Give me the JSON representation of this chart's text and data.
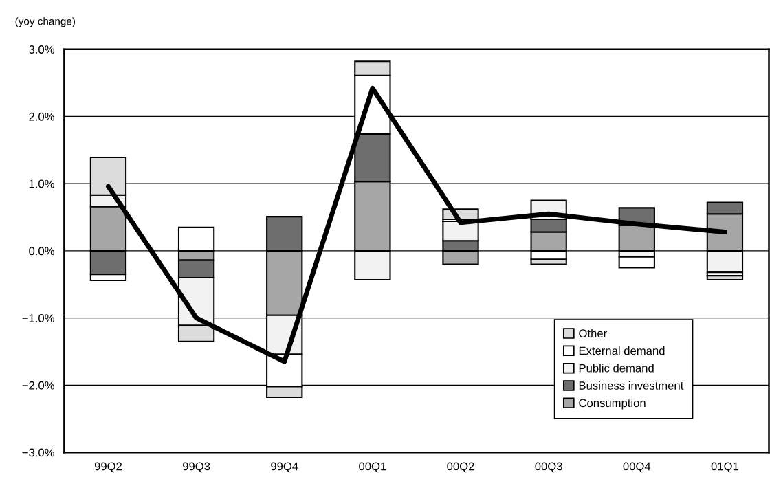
{
  "chart_data": {
    "type": "bar",
    "stacked": true,
    "ylabel": "(yoy change)",
    "categories": [
      "99Q2",
      "99Q3",
      "99Q4",
      "00Q1",
      "00Q2",
      "00Q3",
      "00Q4",
      "01Q1"
    ],
    "series": [
      {
        "name": "Consumption",
        "color": "#a6a6a6",
        "values": [
          0.66,
          -0.14,
          -0.96,
          1.03,
          -0.2,
          0.28,
          0.38,
          0.55
        ]
      },
      {
        "name": "Business investment",
        "color": "#6e6e6e",
        "values": [
          -0.35,
          -0.26,
          0.51,
          0.71,
          0.15,
          0.19,
          0.26,
          0.17
        ]
      },
      {
        "name": "Public demand",
        "color": "#f2f2f2",
        "values": [
          0.17,
          -0.71,
          -0.58,
          -0.43,
          0.29,
          0.28,
          -0.09,
          -0.32
        ]
      },
      {
        "name": "External demand",
        "color": "#ffffff",
        "values": [
          -0.09,
          0.35,
          -0.48,
          0.87,
          0.03,
          -0.13,
          -0.16,
          -0.05
        ]
      },
      {
        "name": "Other",
        "color": "#dcdcdc",
        "values": [
          0.56,
          -0.24,
          -0.16,
          0.21,
          0.15,
          -0.07,
          null,
          -0.06
        ]
      },
      {
        "type": "line",
        "color": "#000000",
        "values": [
          0.96,
          -1.0,
          -1.65,
          2.42,
          0.42,
          0.55,
          0.4,
          0.28
        ]
      }
    ],
    "ylim": [
      -3,
      3
    ],
    "yticks": [
      {
        "value": -3,
        "label": "−3.0%"
      },
      {
        "value": -2,
        "label": "−2.0%"
      },
      {
        "value": -1,
        "label": "−1.0%"
      },
      {
        "value": 0,
        "label": "0.0%"
      },
      {
        "value": 1,
        "label": "1.0%"
      },
      {
        "value": 2,
        "label": "2.0%"
      },
      {
        "value": 3,
        "label": "3.0%"
      }
    ],
    "grid": "y",
    "legend": "bottom right",
    "marker": "none",
    "line_style": "solid"
  }
}
